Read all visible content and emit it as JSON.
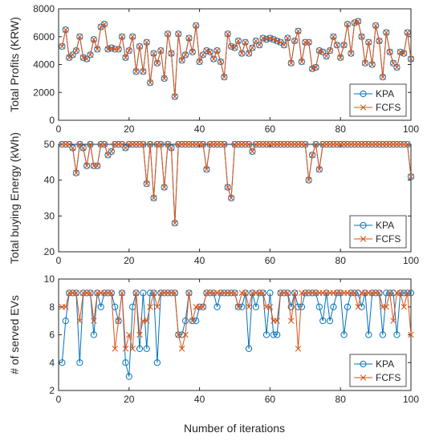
{
  "figure": {
    "xlabel": "Number of iterations"
  },
  "chart_data": [
    {
      "type": "line",
      "ylabel": "Total Profits (KRW)",
      "xlim": [
        0,
        100
      ],
      "ylim": [
        0,
        8000
      ],
      "xticks": [
        0,
        20,
        40,
        60,
        80,
        100
      ],
      "yticks": [
        0,
        2000,
        4000,
        6000,
        8000
      ],
      "legend": "bottom-right",
      "x": [
        1,
        2,
        3,
        4,
        5,
        6,
        7,
        8,
        9,
        10,
        11,
        12,
        13,
        14,
        15,
        16,
        17,
        18,
        19,
        20,
        21,
        22,
        23,
        24,
        25,
        26,
        27,
        28,
        29,
        30,
        31,
        32,
        33,
        34,
        35,
        36,
        37,
        38,
        39,
        40,
        41,
        42,
        43,
        44,
        45,
        46,
        47,
        48,
        49,
        50,
        51,
        52,
        53,
        54,
        55,
        56,
        57,
        58,
        59,
        60,
        61,
        62,
        63,
        64,
        65,
        66,
        67,
        68,
        69,
        70,
        71,
        72,
        73,
        74,
        75,
        76,
        77,
        78,
        79,
        80,
        81,
        82,
        83,
        84,
        85,
        86,
        87,
        88,
        89,
        90,
        91,
        92,
        93,
        94,
        95,
        96,
        97,
        98,
        99,
        100
      ],
      "series": [
        {
          "name": "KPA",
          "color": "#0072BD",
          "marker": "circle",
          "values": [
            5300,
            6500,
            4500,
            4700,
            5000,
            6000,
            4500,
            4400,
            4700,
            5800,
            5100,
            6700,
            6900,
            5100,
            5200,
            5100,
            5100,
            6000,
            4500,
            5000,
            6000,
            3500,
            5300,
            3500,
            5600,
            2700,
            4800,
            4100,
            5000,
            3000,
            6200,
            4800,
            1700,
            6200,
            4300,
            4700,
            5900,
            4900,
            6800,
            4200,
            4700,
            5000,
            4900,
            4400,
            5000,
            4200,
            3100,
            6200,
            5300,
            5200,
            5700,
            4800,
            5600,
            4800,
            5200,
            5700,
            5400,
            5900,
            5800,
            5900,
            5800,
            5700,
            5600,
            5400,
            5900,
            4100,
            5700,
            6400,
            4200,
            5600,
            5600,
            3700,
            3800,
            5000,
            4900,
            4600,
            5000,
            6000,
            5400,
            4500,
            5400,
            6900,
            4800,
            7000,
            7100,
            6000,
            4100,
            5600,
            4000,
            6800,
            5700,
            3100,
            6300,
            4900,
            4100,
            3800,
            4900,
            4800,
            6300,
            4400
          ]
        },
        {
          "name": "FCFS",
          "color": "#D95319",
          "marker": "x",
          "values": [
            5300,
            6500,
            4500,
            4700,
            5000,
            6000,
            4500,
            4400,
            4700,
            5800,
            5100,
            6700,
            6900,
            5100,
            5200,
            5100,
            5100,
            6000,
            4500,
            5000,
            6000,
            3500,
            5300,
            3500,
            5600,
            2700,
            4800,
            4100,
            5000,
            3000,
            6200,
            4800,
            1700,
            6200,
            4300,
            4700,
            5900,
            4900,
            6800,
            4200,
            4700,
            5000,
            4900,
            4400,
            5000,
            4200,
            3100,
            6200,
            5300,
            5200,
            5700,
            4800,
            5600,
            4800,
            5200,
            5700,
            5400,
            5900,
            5800,
            5900,
            5800,
            5700,
            5600,
            5400,
            5900,
            4100,
            5700,
            6400,
            4200,
            5600,
            5600,
            3700,
            3800,
            5000,
            4900,
            4600,
            5000,
            6000,
            5400,
            4500,
            5400,
            6900,
            4800,
            7000,
            7100,
            6000,
            4100,
            5600,
            4000,
            6800,
            5700,
            3100,
            6300,
            4900,
            4100,
            3800,
            4900,
            4800,
            6300,
            4400
          ]
        }
      ]
    },
    {
      "type": "line",
      "ylabel": "Total buying Energy (kWh)",
      "xlim": [
        0,
        100
      ],
      "ylim": [
        20,
        50
      ],
      "xticks": [
        0,
        20,
        40,
        60,
        80,
        100
      ],
      "yticks": [
        20,
        30,
        40,
        50
      ],
      "legend": "bottom-right",
      "x": [
        1,
        2,
        3,
        4,
        5,
        6,
        7,
        8,
        9,
        10,
        11,
        12,
        13,
        14,
        15,
        16,
        17,
        18,
        19,
        20,
        21,
        22,
        23,
        24,
        25,
        26,
        27,
        28,
        29,
        30,
        31,
        32,
        33,
        34,
        35,
        36,
        37,
        38,
        39,
        40,
        41,
        42,
        43,
        44,
        45,
        46,
        47,
        48,
        49,
        50,
        51,
        52,
        53,
        54,
        55,
        56,
        57,
        58,
        59,
        60,
        61,
        62,
        63,
        64,
        65,
        66,
        67,
        68,
        69,
        70,
        71,
        72,
        73,
        74,
        75,
        76,
        77,
        78,
        79,
        80,
        81,
        82,
        83,
        84,
        85,
        86,
        87,
        88,
        89,
        90,
        91,
        92,
        93,
        94,
        95,
        96,
        97,
        98,
        99,
        100
      ],
      "series": [
        {
          "name": "KPA",
          "color": "#0072BD",
          "marker": "circle",
          "values": [
            50,
            50,
            50,
            49,
            42,
            50,
            49,
            44,
            50,
            44,
            44,
            50,
            50,
            47,
            48,
            50,
            50,
            50,
            49,
            50,
            50,
            50,
            50,
            50,
            39,
            50,
            35,
            50,
            50,
            38,
            50,
            49,
            28,
            50,
            50,
            50,
            50,
            50,
            50,
            50,
            50,
            43,
            50,
            50,
            50,
            50,
            50,
            38,
            35,
            50,
            50,
            50,
            50,
            50,
            48,
            50,
            50,
            50,
            50,
            50,
            50,
            50,
            50,
            50,
            50,
            50,
            50,
            50,
            50,
            50,
            40,
            47,
            50,
            43,
            50,
            50,
            50,
            50,
            50,
            50,
            50,
            50,
            50,
            50,
            50,
            50,
            50,
            50,
            50,
            50,
            50,
            50,
            50,
            50,
            50,
            50,
            50,
            50,
            50,
            41
          ]
        },
        {
          "name": "FCFS",
          "color": "#D95319",
          "marker": "x",
          "values": [
            50,
            50,
            50,
            49,
            42,
            50,
            49,
            44,
            50,
            44,
            44,
            50,
            50,
            47,
            48,
            50,
            50,
            50,
            49,
            50,
            50,
            50,
            50,
            50,
            39,
            50,
            35,
            50,
            50,
            38,
            50,
            49,
            28,
            50,
            50,
            50,
            50,
            50,
            50,
            50,
            50,
            43,
            50,
            50,
            50,
            50,
            50,
            38,
            35,
            50,
            50,
            50,
            50,
            50,
            48,
            50,
            50,
            50,
            50,
            50,
            50,
            50,
            50,
            50,
            50,
            50,
            50,
            50,
            50,
            50,
            40,
            47,
            50,
            43,
            50,
            50,
            50,
            50,
            50,
            50,
            50,
            50,
            50,
            50,
            50,
            50,
            50,
            50,
            50,
            50,
            50,
            50,
            50,
            50,
            50,
            50,
            50,
            50,
            50,
            41
          ]
        }
      ]
    },
    {
      "type": "line",
      "ylabel": "# of served EVs",
      "xlim": [
        0,
        100
      ],
      "ylim": [
        2,
        10
      ],
      "xticks": [
        0,
        20,
        40,
        60,
        80,
        100
      ],
      "yticks": [
        2,
        4,
        6,
        8,
        10
      ],
      "legend": "bottom-right",
      "x": [
        1,
        2,
        3,
        4,
        5,
        6,
        7,
        8,
        9,
        10,
        11,
        12,
        13,
        14,
        15,
        16,
        17,
        18,
        19,
        20,
        21,
        22,
        23,
        24,
        25,
        26,
        27,
        28,
        29,
        30,
        31,
        32,
        33,
        34,
        35,
        36,
        37,
        38,
        39,
        40,
        41,
        42,
        43,
        44,
        45,
        46,
        47,
        48,
        49,
        50,
        51,
        52,
        53,
        54,
        55,
        56,
        57,
        58,
        59,
        60,
        61,
        62,
        63,
        64,
        65,
        66,
        67,
        68,
        69,
        70,
        71,
        72,
        73,
        74,
        75,
        76,
        77,
        78,
        79,
        80,
        81,
        82,
        83,
        84,
        85,
        86,
        87,
        88,
        89,
        90,
        91,
        92,
        93,
        94,
        95,
        96,
        97,
        98,
        99,
        100
      ],
      "series": [
        {
          "name": "KPA",
          "color": "#0072BD",
          "marker": "circle",
          "values": [
            4,
            7,
            9,
            9,
            9,
            4,
            9,
            9,
            9,
            6,
            9,
            8,
            9,
            9,
            9,
            8,
            7,
            9,
            4,
            3,
            8,
            9,
            5,
            9,
            5,
            9,
            9,
            4,
            9,
            9,
            9,
            9,
            9,
            6,
            6,
            7,
            9,
            7,
            7,
            8,
            8,
            9,
            9,
            9,
            8,
            9,
            9,
            9,
            9,
            9,
            8,
            8,
            9,
            5,
            9,
            8,
            9,
            9,
            6,
            9,
            6,
            6,
            9,
            9,
            9,
            8,
            9,
            8,
            8,
            9,
            9,
            9,
            9,
            8,
            7,
            9,
            7,
            8,
            9,
            9,
            6,
            8,
            9,
            9,
            9,
            8,
            9,
            6,
            9,
            9,
            9,
            6,
            9,
            9,
            9,
            6,
            9,
            9,
            9,
            9
          ]
        },
        {
          "name": "FCFS",
          "color": "#D95319",
          "marker": "x",
          "values": [
            8,
            8,
            9,
            9,
            9,
            7,
            9,
            9,
            9,
            7,
            9,
            9,
            9,
            9,
            9,
            5,
            7,
            9,
            5,
            6,
            5,
            9,
            6,
            7,
            7,
            8,
            9,
            8,
            9,
            9,
            9,
            9,
            9,
            6,
            5,
            6,
            9,
            7,
            8,
            8,
            8,
            9,
            9,
            9,
            9,
            9,
            9,
            9,
            9,
            9,
            8,
            9,
            9,
            8,
            9,
            9,
            9,
            9,
            8,
            8,
            7,
            7,
            9,
            9,
            9,
            7,
            9,
            5,
            9,
            9,
            9,
            9,
            9,
            9,
            9,
            9,
            9,
            9,
            9,
            9,
            9,
            9,
            9,
            9,
            8,
            9,
            9,
            9,
            9,
            9,
            9,
            8,
            8,
            9,
            7,
            9,
            9,
            8,
            9,
            6
          ]
        }
      ]
    }
  ]
}
